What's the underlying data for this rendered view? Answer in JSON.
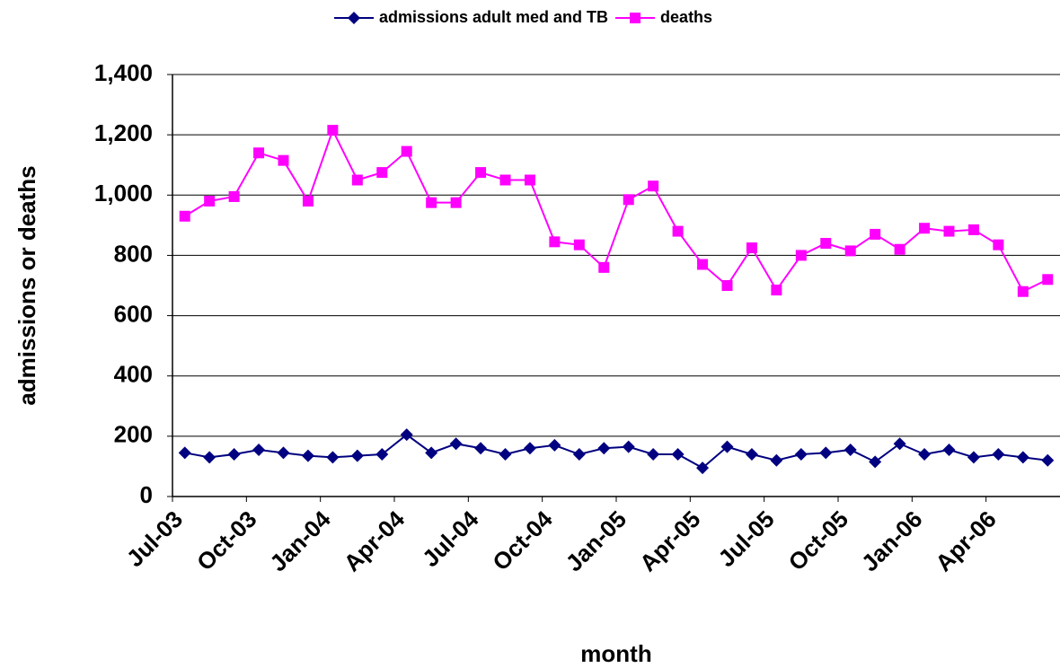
{
  "chart_data": {
    "type": "line",
    "x_label": "month",
    "y_label": "admissions or deaths",
    "categories": [
      "Jul-03",
      null,
      null,
      "Oct-03",
      null,
      null,
      "Jan-04",
      null,
      null,
      "Apr-04",
      null,
      null,
      "Jul-04",
      null,
      null,
      "Oct-04",
      null,
      null,
      "Jan-05",
      null,
      null,
      "Apr-05",
      null,
      null,
      "Jul-05",
      null,
      null,
      "Oct-05",
      null,
      null,
      "Jan-06",
      null,
      null,
      "Apr-06",
      null,
      null
    ],
    "series": [
      {
        "name": "admissions adult med and TB",
        "color": "#000080",
        "marker": "diamond",
        "values": [
          145,
          130,
          140,
          155,
          145,
          135,
          130,
          135,
          140,
          205,
          145,
          175,
          160,
          140,
          160,
          170,
          140,
          160,
          165,
          140,
          140,
          95,
          165,
          140,
          120,
          140,
          145,
          155,
          115,
          175,
          140,
          155,
          130,
          140,
          130,
          120
        ]
      },
      {
        "name": "deaths",
        "color": "#ff00ff",
        "marker": "square",
        "values": [
          930,
          980,
          995,
          1140,
          1115,
          980,
          1215,
          1050,
          1075,
          1145,
          975,
          975,
          1075,
          1050,
          1050,
          845,
          835,
          760,
          985,
          1030,
          880,
          770,
          700,
          825,
          685,
          800,
          840,
          815,
          870,
          820,
          890,
          880,
          885,
          835,
          680,
          720
        ]
      }
    ],
    "ylim": [
      0,
      1400
    ],
    "yticks": [
      0,
      200,
      400,
      600,
      800,
      {
        "value": 1000,
        "label": "1,000"
      },
      {
        "value": 1200,
        "label": "1,200"
      },
      {
        "value": 1400,
        "label": "1,400"
      }
    ],
    "grid": true,
    "legend": "top"
  }
}
